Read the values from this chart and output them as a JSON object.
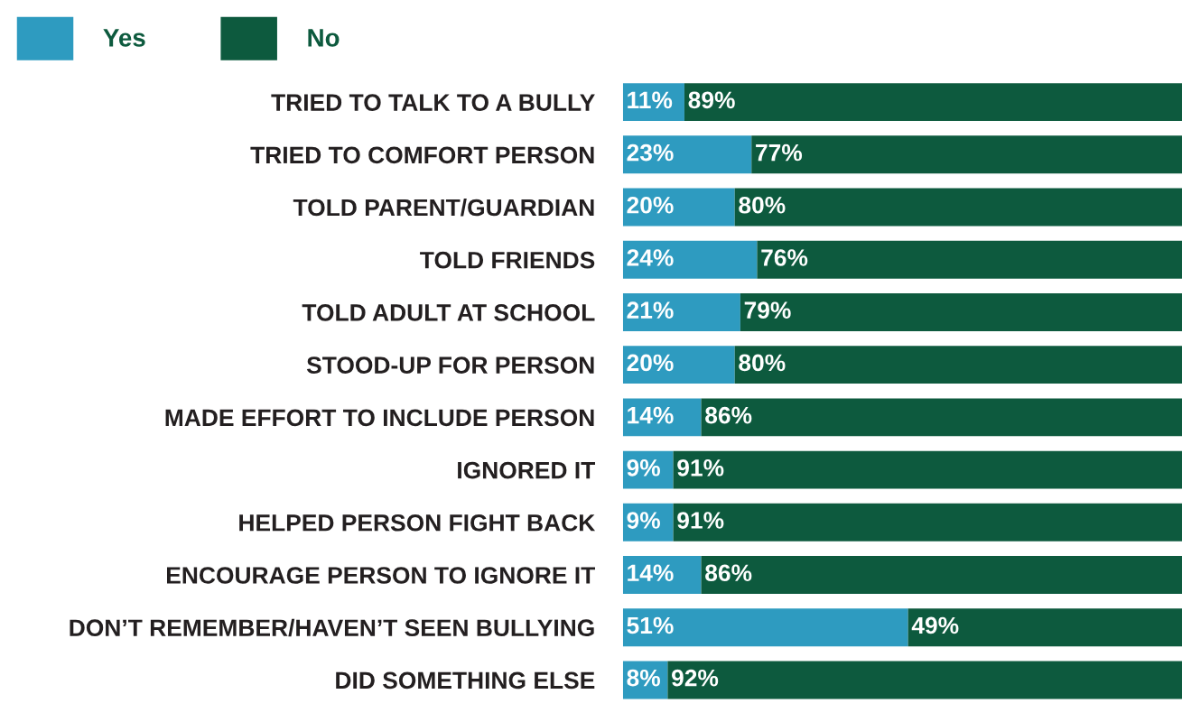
{
  "chart_data": {
    "type": "bar",
    "orientation": "horizontal",
    "stacked": true,
    "legend": "top left",
    "grid": false,
    "tick_labels": "y",
    "xlim": [
      0,
      100
    ],
    "categories": [
      "TRIED TO TALK TO A BULLY",
      "TRIED TO COMFORT PERSON",
      "TOLD PARENT/GUARDIAN",
      "TOLD FRIENDS",
      "TOLD ADULT AT SCHOOL",
      "STOOD-UP FOR PERSON",
      "MADE EFFORT TO INCLUDE PERSON",
      "IGNORED IT",
      "HELPED PERSON FIGHT BACK",
      "ENCOURAGE PERSON TO IGNORE IT",
      "DON’T REMEMBER/HAVEN’T SEEN BULLYING",
      "DID SOMETHING ELSE"
    ],
    "series": [
      {
        "name": "Yes",
        "color": "#2e9bc0",
        "values": [
          11,
          23,
          20,
          24,
          21,
          20,
          14,
          9,
          9,
          14,
          51,
          8
        ],
        "value_labels": [
          "11%",
          "23%",
          "20%",
          "24%",
          "21%",
          "20%",
          "14%",
          "9%",
          "9%",
          "14%",
          "51%",
          "8%"
        ]
      },
      {
        "name": "No",
        "color": "#0d5a3e",
        "values": [
          89,
          77,
          80,
          76,
          79,
          80,
          86,
          91,
          91,
          86,
          49,
          92
        ],
        "value_labels": [
          "89%",
          "77%",
          "80%",
          "76%",
          "79%",
          "80%",
          "86%",
          "91%",
          "91%",
          "86%",
          "49%",
          "92%"
        ]
      }
    ]
  }
}
